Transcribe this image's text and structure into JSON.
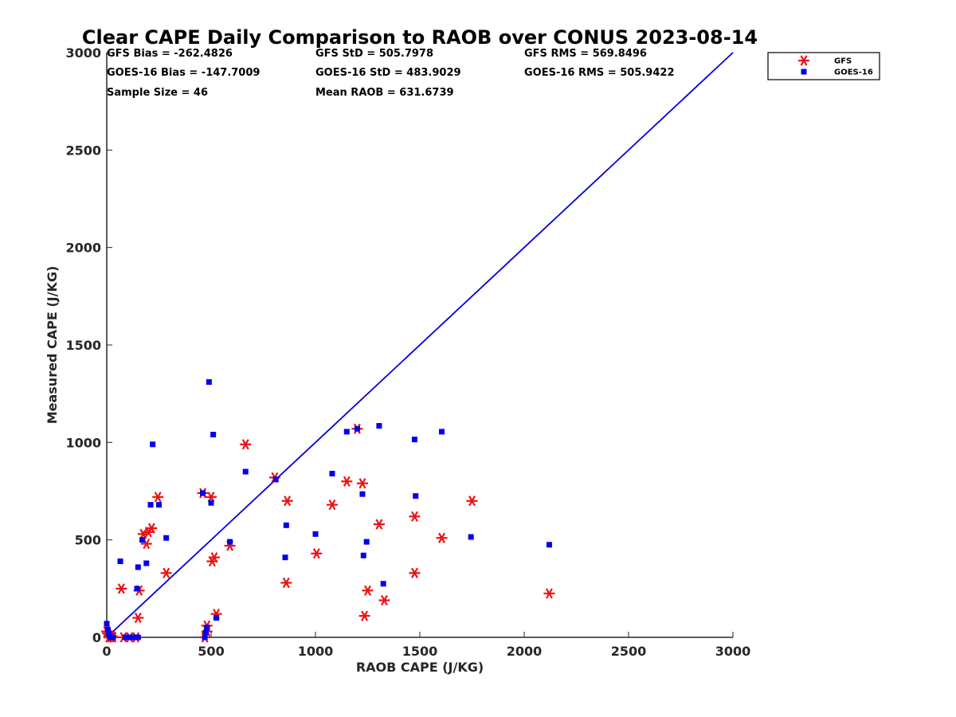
{
  "chart_data": {
    "type": "scatter",
    "title": "Clear CAPE Daily Comparison to RAOB over CONUS 2023-08-14",
    "xlabel": "RAOB CAPE (J/KG)",
    "ylabel": "Measured CAPE (J/KG)",
    "xlim": [
      0,
      3000
    ],
    "ylim": [
      0,
      3000
    ],
    "xticks": [
      "0",
      "500",
      "1000",
      "1500",
      "2000",
      "2500",
      "3000"
    ],
    "yticks": [
      "0",
      "500",
      "1000",
      "1500",
      "2000",
      "2500",
      "3000"
    ],
    "grid": false,
    "legend_position": "top-right",
    "reference_line": {
      "x": [
        0,
        3000
      ],
      "y": [
        0,
        3000
      ],
      "color": "#0000dd"
    },
    "stats": [
      "GFS Bias = -262.4826",
      "GFS StD = 505.7978",
      "GFS RMS = 569.8496",
      "GOES-16 Bias = -147.7009",
      "GOES-16 StD = 483.9029",
      "GOES-16 RMS = 505.9422",
      "Sample Size = 46",
      "Mean RAOB = 631.6739"
    ],
    "series": [
      {
        "name": "GFS",
        "marker": "asterisk",
        "color": "#ee1111",
        "points": [
          [
            0,
            30
          ],
          [
            5,
            20
          ],
          [
            10,
            0
          ],
          [
            15,
            10
          ],
          [
            20,
            0
          ],
          [
            25,
            5
          ],
          [
            30,
            0
          ],
          [
            70,
            250
          ],
          [
            80,
            0
          ],
          [
            110,
            0
          ],
          [
            140,
            0
          ],
          [
            150,
            100
          ],
          [
            155,
            240
          ],
          [
            175,
            530
          ],
          [
            190,
            480
          ],
          [
            200,
            540
          ],
          [
            215,
            560
          ],
          [
            245,
            720
          ],
          [
            285,
            330
          ],
          [
            460,
            740
          ],
          [
            480,
            30
          ],
          [
            480,
            60
          ],
          [
            500,
            720
          ],
          [
            505,
            390
          ],
          [
            515,
            410
          ],
          [
            525,
            120
          ],
          [
            590,
            470
          ],
          [
            665,
            990
          ],
          [
            805,
            820
          ],
          [
            860,
            280
          ],
          [
            865,
            700
          ],
          [
            1005,
            430
          ],
          [
            1080,
            680
          ],
          [
            1150,
            800
          ],
          [
            1200,
            1070
          ],
          [
            1225,
            790
          ],
          [
            1235,
            110
          ],
          [
            1250,
            240
          ],
          [
            1305,
            580
          ],
          [
            1330,
            190
          ],
          [
            1475,
            620
          ],
          [
            1475,
            330
          ],
          [
            1605,
            510
          ],
          [
            1750,
            700
          ],
          [
            2120,
            225
          ],
          [
            470,
            0
          ]
        ]
      },
      {
        "name": "GOES-16",
        "marker": "square",
        "color": "#0000ee",
        "points": [
          [
            0,
            70
          ],
          [
            5,
            40
          ],
          [
            10,
            20
          ],
          [
            15,
            5
          ],
          [
            20,
            0
          ],
          [
            30,
            0
          ],
          [
            65,
            390
          ],
          [
            90,
            0
          ],
          [
            110,
            0
          ],
          [
            130,
            0
          ],
          [
            150,
            0
          ],
          [
            145,
            250
          ],
          [
            150,
            360
          ],
          [
            170,
            500
          ],
          [
            190,
            380
          ],
          [
            210,
            680
          ],
          [
            220,
            990
          ],
          [
            250,
            680
          ],
          [
            285,
            510
          ],
          [
            460,
            740
          ],
          [
            470,
            0
          ],
          [
            475,
            25
          ],
          [
            480,
            50
          ],
          [
            490,
            1310
          ],
          [
            500,
            690
          ],
          [
            510,
            1040
          ],
          [
            525,
            100
          ],
          [
            590,
            490
          ],
          [
            665,
            850
          ],
          [
            810,
            810
          ],
          [
            855,
            410
          ],
          [
            860,
            575
          ],
          [
            1000,
            530
          ],
          [
            1080,
            840
          ],
          [
            1150,
            1055
          ],
          [
            1200,
            1070
          ],
          [
            1225,
            735
          ],
          [
            1230,
            420
          ],
          [
            1245,
            490
          ],
          [
            1305,
            1085
          ],
          [
            1325,
            275
          ],
          [
            1475,
            1015
          ],
          [
            1480,
            725
          ],
          [
            1605,
            1055
          ],
          [
            1745,
            515
          ],
          [
            2120,
            475
          ]
        ]
      }
    ]
  }
}
